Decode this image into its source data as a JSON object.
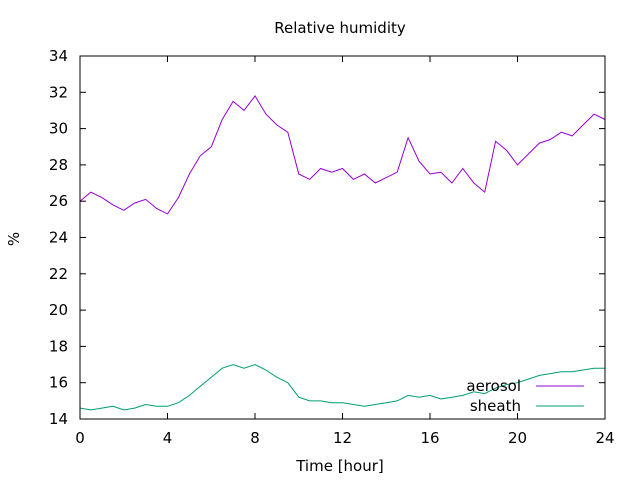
{
  "chart_data": {
    "type": "line",
    "title": "Relative humidity",
    "xlabel": "Time [hour]",
    "ylabel": "%",
    "xlim": [
      0,
      24
    ],
    "ylim": [
      14,
      34
    ],
    "xticks": [
      0,
      4,
      8,
      12,
      16,
      20,
      24
    ],
    "yticks": [
      14,
      16,
      18,
      20,
      22,
      24,
      26,
      28,
      30,
      32,
      34
    ],
    "grid": false,
    "legend": "bottom-right",
    "series": [
      {
        "name": "aerosol",
        "color": "#9400d3",
        "x": [
          0,
          0.5,
          1,
          1.5,
          2,
          2.5,
          3,
          3.5,
          4,
          4.5,
          5,
          5.5,
          6,
          6.5,
          7,
          7.5,
          8,
          8.5,
          9,
          9.5,
          10,
          10.5,
          11,
          11.5,
          12,
          12.5,
          13,
          13.5,
          14,
          14.5,
          15,
          15.5,
          16,
          16.5,
          17,
          17.5,
          18,
          18.5,
          19,
          19.5,
          20,
          20.5,
          21,
          21.5,
          22,
          22.5,
          23,
          23.5,
          24
        ],
        "y": [
          26.0,
          26.5,
          26.2,
          25.8,
          25.5,
          25.9,
          26.1,
          25.6,
          25.3,
          26.2,
          27.5,
          28.5,
          29.0,
          30.5,
          31.5,
          31.0,
          31.8,
          30.8,
          30.2,
          29.8,
          27.5,
          27.2,
          27.8,
          27.6,
          27.8,
          27.2,
          27.5,
          27.0,
          27.3,
          27.6,
          29.5,
          28.2,
          27.5,
          27.6,
          27.0,
          27.8,
          27.0,
          26.5,
          29.3,
          28.8,
          28.0,
          28.6,
          29.2,
          29.4,
          29.8,
          29.6,
          30.2,
          30.8,
          30.5
        ]
      },
      {
        "name": "sheath",
        "color": "#009e73",
        "x": [
          0,
          0.5,
          1,
          1.5,
          2,
          2.5,
          3,
          3.5,
          4,
          4.5,
          5,
          5.5,
          6,
          6.5,
          7,
          7.5,
          8,
          8.5,
          9,
          9.5,
          10,
          10.5,
          11,
          11.5,
          12,
          12.5,
          13,
          13.5,
          14,
          14.5,
          15,
          15.5,
          16,
          16.5,
          17,
          17.5,
          18,
          18.5,
          19,
          19.5,
          20,
          20.5,
          21,
          21.5,
          22,
          22.5,
          23,
          23.5,
          24
        ],
        "y": [
          14.6,
          14.5,
          14.6,
          14.7,
          14.5,
          14.6,
          14.8,
          14.7,
          14.7,
          14.9,
          15.3,
          15.8,
          16.3,
          16.8,
          17.0,
          16.8,
          17.0,
          16.7,
          16.3,
          16.0,
          15.2,
          15.0,
          15.0,
          14.9,
          14.9,
          14.8,
          14.7,
          14.8,
          14.9,
          15.0,
          15.3,
          15.2,
          15.3,
          15.1,
          15.2,
          15.3,
          15.5,
          15.4,
          15.7,
          15.9,
          16.0,
          16.2,
          16.4,
          16.5,
          16.6,
          16.6,
          16.7,
          16.8,
          16.8
        ]
      }
    ]
  }
}
